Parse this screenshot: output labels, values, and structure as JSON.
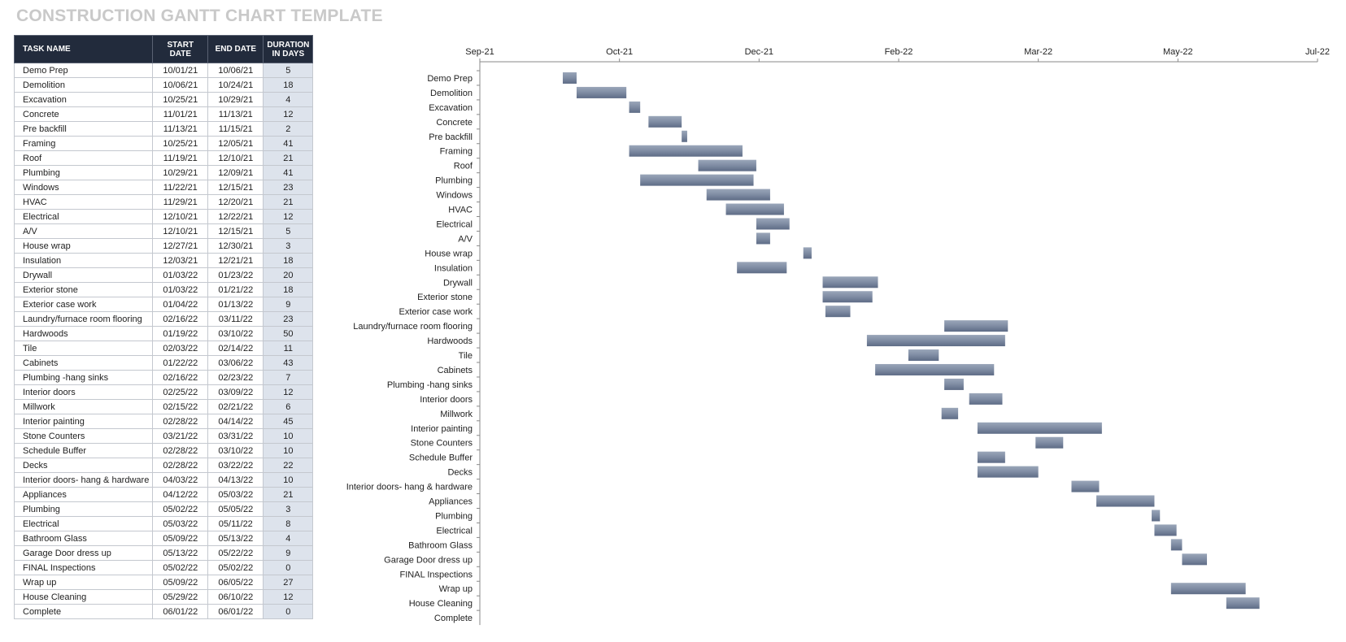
{
  "title": "CONSTRUCTION GANTT CHART TEMPLATE",
  "table": {
    "headers": {
      "task": "TASK NAME",
      "start": "START DATE",
      "end": "END DATE",
      "duration_line1": "DURATION",
      "duration_line2": "IN DAYS"
    },
    "rows": [
      {
        "task": "Demo Prep",
        "start": "10/01/21",
        "end": "10/06/21",
        "duration": "5"
      },
      {
        "task": "Demolition",
        "start": "10/06/21",
        "end": "10/24/21",
        "duration": "18"
      },
      {
        "task": "Excavation",
        "start": "10/25/21",
        "end": "10/29/21",
        "duration": "4"
      },
      {
        "task": "Concrete",
        "start": "11/01/21",
        "end": "11/13/21",
        "duration": "12"
      },
      {
        "task": "Pre backfill",
        "start": "11/13/21",
        "end": "11/15/21",
        "duration": "2"
      },
      {
        "task": "Framing",
        "start": "10/25/21",
        "end": "12/05/21",
        "duration": "41"
      },
      {
        "task": "Roof",
        "start": "11/19/21",
        "end": "12/10/21",
        "duration": "21"
      },
      {
        "task": "Plumbing",
        "start": "10/29/21",
        "end": "12/09/21",
        "duration": "41"
      },
      {
        "task": "Windows",
        "start": "11/22/21",
        "end": "12/15/21",
        "duration": "23"
      },
      {
        "task": "HVAC",
        "start": "11/29/21",
        "end": "12/20/21",
        "duration": "21"
      },
      {
        "task": "Electrical",
        "start": "12/10/21",
        "end": "12/22/21",
        "duration": "12"
      },
      {
        "task": "A/V",
        "start": "12/10/21",
        "end": "12/15/21",
        "duration": "5"
      },
      {
        "task": "House wrap",
        "start": "12/27/21",
        "end": "12/30/21",
        "duration": "3"
      },
      {
        "task": "Insulation",
        "start": "12/03/21",
        "end": "12/21/21",
        "duration": "18"
      },
      {
        "task": "Drywall",
        "start": "01/03/22",
        "end": "01/23/22",
        "duration": "20"
      },
      {
        "task": "Exterior stone",
        "start": "01/03/22",
        "end": "01/21/22",
        "duration": "18"
      },
      {
        "task": "Exterior case work",
        "start": "01/04/22",
        "end": "01/13/22",
        "duration": "9"
      },
      {
        "task": "Laundry/furnace room flooring",
        "start": "02/16/22",
        "end": "03/11/22",
        "duration": "23"
      },
      {
        "task": "Hardwoods",
        "start": "01/19/22",
        "end": "03/10/22",
        "duration": "50"
      },
      {
        "task": "Tile",
        "start": "02/03/22",
        "end": "02/14/22",
        "duration": "11"
      },
      {
        "task": "Cabinets",
        "start": "01/22/22",
        "end": "03/06/22",
        "duration": "43"
      },
      {
        "task": "Plumbing -hang sinks",
        "start": "02/16/22",
        "end": "02/23/22",
        "duration": "7"
      },
      {
        "task": "Interior doors",
        "start": "02/25/22",
        "end": "03/09/22",
        "duration": "12"
      },
      {
        "task": "Millwork",
        "start": "02/15/22",
        "end": "02/21/22",
        "duration": "6"
      },
      {
        "task": "Interior painting",
        "start": "02/28/22",
        "end": "04/14/22",
        "duration": "45"
      },
      {
        "task": "Stone Counters",
        "start": "03/21/22",
        "end": "03/31/22",
        "duration": "10"
      },
      {
        "task": "Schedule Buffer",
        "start": "02/28/22",
        "end": "03/10/22",
        "duration": "10"
      },
      {
        "task": "Decks",
        "start": "02/28/22",
        "end": "03/22/22",
        "duration": "22"
      },
      {
        "task": "Interior doors- hang & hardware",
        "start": "04/03/22",
        "end": "04/13/22",
        "duration": "10"
      },
      {
        "task": "Appliances",
        "start": "04/12/22",
        "end": "05/03/22",
        "duration": "21"
      },
      {
        "task": "Plumbing",
        "start": "05/02/22",
        "end": "05/05/22",
        "duration": "3"
      },
      {
        "task": "Electrical",
        "start": "05/03/22",
        "end": "05/11/22",
        "duration": "8"
      },
      {
        "task": "Bathroom Glass",
        "start": "05/09/22",
        "end": "05/13/22",
        "duration": "4"
      },
      {
        "task": "Garage Door dress up",
        "start": "05/13/22",
        "end": "05/22/22",
        "duration": "9"
      },
      {
        "task": "FINAL Inspections",
        "start": "05/02/22",
        "end": "05/02/22",
        "duration": "0"
      },
      {
        "task": "Wrap up",
        "start": "05/09/22",
        "end": "06/05/22",
        "duration": "27"
      },
      {
        "task": "House Cleaning",
        "start": "05/29/22",
        "end": "06/10/22",
        "duration": "12"
      },
      {
        "task": "Complete",
        "start": "06/01/22",
        "end": "06/01/22",
        "duration": "0"
      }
    ]
  },
  "chart_data": {
    "type": "bar",
    "orientation": "horizontal-gantt",
    "categories": [
      "Demo Prep",
      "Demolition",
      "Excavation",
      "Concrete",
      "Pre backfill",
      "Framing",
      "Roof",
      "Plumbing",
      "Windows",
      "HVAC",
      "Electrical",
      "A/V",
      "House wrap",
      "Insulation",
      "Drywall",
      "Exterior stone",
      "Exterior case work",
      "Laundry/furnace room flooring",
      "Hardwoods",
      "Tile",
      "Cabinets",
      "Plumbing -hang sinks",
      "Interior doors",
      "Millwork",
      "Interior painting",
      "Stone Counters",
      "Schedule Buffer",
      "Decks",
      "Interior doors- hang & hardware",
      "Appliances",
      "Plumbing",
      "Electrical",
      "Bathroom Glass",
      "Garage Door dress up",
      "FINAL Inspections",
      "Wrap up",
      "House Cleaning",
      "Complete"
    ],
    "starts": [
      "2021-10-01",
      "2021-10-06",
      "2021-10-25",
      "2021-11-01",
      "2021-11-13",
      "2021-10-25",
      "2021-11-19",
      "2021-10-29",
      "2021-11-22",
      "2021-11-29",
      "2021-12-10",
      "2021-12-10",
      "2021-12-27",
      "2021-12-03",
      "2022-01-03",
      "2022-01-03",
      "2022-01-04",
      "2022-02-16",
      "2022-01-19",
      "2022-02-03",
      "2022-01-22",
      "2022-02-16",
      "2022-02-25",
      "2022-02-15",
      "2022-02-28",
      "2022-03-21",
      "2022-02-28",
      "2022-02-28",
      "2022-04-03",
      "2022-04-12",
      "2022-05-02",
      "2022-05-03",
      "2022-05-09",
      "2022-05-13",
      "2022-05-02",
      "2022-05-09",
      "2022-05-29",
      "2022-06-01"
    ],
    "durations": [
      5,
      18,
      4,
      12,
      2,
      41,
      21,
      41,
      23,
      21,
      12,
      5,
      3,
      18,
      20,
      18,
      9,
      23,
      50,
      11,
      43,
      7,
      12,
      6,
      45,
      10,
      10,
      22,
      10,
      21,
      3,
      8,
      4,
      9,
      0,
      27,
      12,
      0
    ],
    "x_ticks": [
      "Sep-21",
      "Oct-21",
      "Dec-21",
      "Feb-22",
      "Mar-22",
      "May-22",
      "Jul-22"
    ],
    "xlim": [
      "2021-09-01",
      "2022-07-01"
    ],
    "axis_position": "top",
    "grid": false,
    "bar_color": "#7f8ca3"
  }
}
